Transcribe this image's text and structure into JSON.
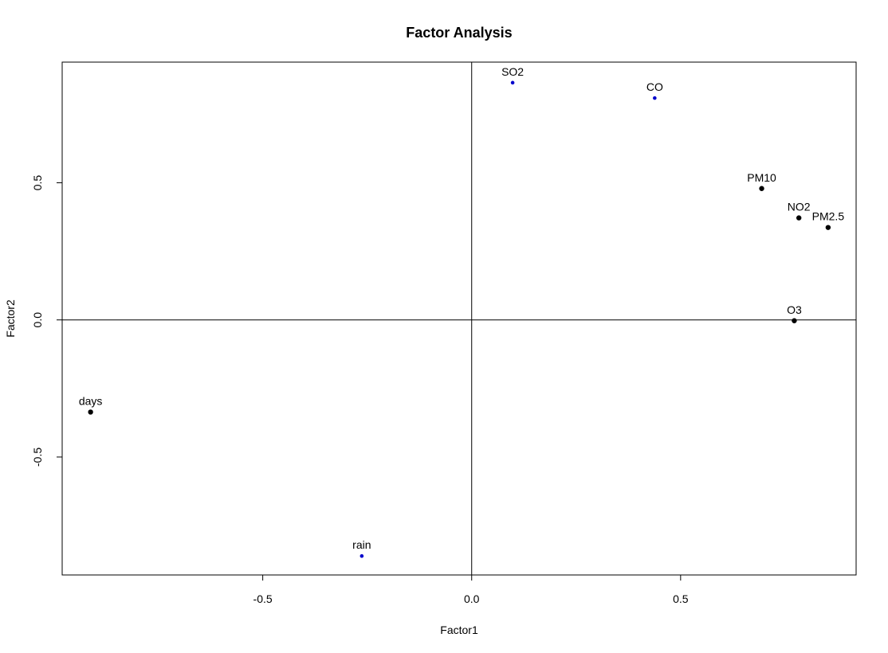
{
  "chart_data": {
    "type": "scatter",
    "title": "Factor Analysis",
    "xlabel": "Factor1",
    "ylabel": "Factor2",
    "xlim": [
      -0.98,
      0.92
    ],
    "ylim": [
      -0.93,
      0.94
    ],
    "x_ticks": [
      -0.5,
      0.0,
      0.5
    ],
    "y_ticks": [
      -0.5,
      0.0,
      0.5
    ],
    "x_tick_labels": [
      "-0.5",
      "0.0",
      "0.5"
    ],
    "y_tick_labels": [
      "-0.5",
      "0.0",
      "0.5"
    ],
    "reference_lines": {
      "x": 0,
      "y": 0
    },
    "grid": false,
    "colors": {
      "black": "#000000",
      "blue": "#0000cc"
    },
    "points": [
      {
        "label": "SO2",
        "x": 0.098,
        "y": 0.865,
        "color": "blue"
      },
      {
        "label": "CO",
        "x": 0.438,
        "y": 0.809,
        "color": "blue"
      },
      {
        "label": "PM10",
        "x": 0.694,
        "y": 0.479,
        "color": "black"
      },
      {
        "label": "NO2",
        "x": 0.783,
        "y": 0.372,
        "color": "black"
      },
      {
        "label": "PM2.5",
        "x": 0.853,
        "y": 0.337,
        "color": "black"
      },
      {
        "label": "O3",
        "x": 0.772,
        "y": -0.003,
        "color": "black"
      },
      {
        "label": "days",
        "x": -0.912,
        "y": -0.336,
        "color": "black"
      },
      {
        "label": "rain",
        "x": -0.263,
        "y": -0.861,
        "color": "blue"
      }
    ]
  }
}
